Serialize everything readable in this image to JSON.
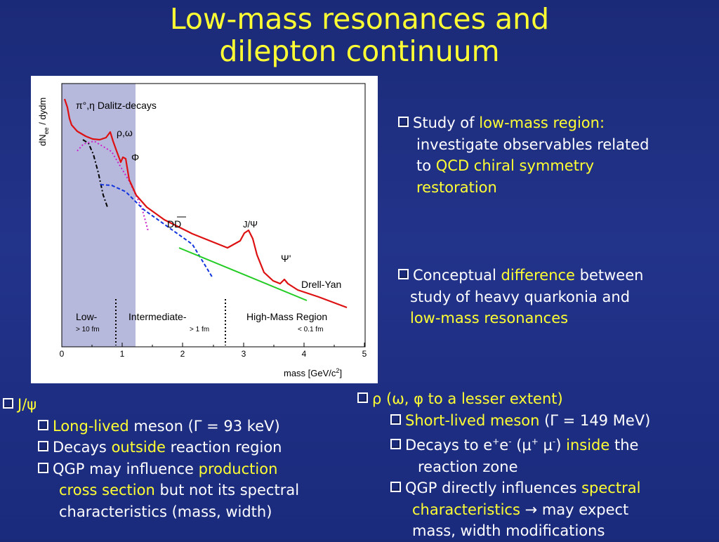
{
  "title": {
    "line1": "Low-mass resonances and",
    "line2": "dilepton continuum"
  },
  "figure": {
    "ylabel_main": "dN",
    "ylabel_sub": "ee",
    "ylabel_rest": " / dydm",
    "xlabel": "mass [GeV/c",
    "xlabel_sup": "2",
    "xlabel_end": "]",
    "xticks": [
      "0",
      "1",
      "2",
      "3",
      "4",
      "5"
    ],
    "labels": {
      "dalitz": "π°,η Dalitz-decays",
      "rho_omega": "ρ,ω",
      "phi": "Φ",
      "dd": "DD",
      "jpsi": "J/Ψ",
      "psiprime": "Ψ'",
      "drell_yan": "Drell-Yan",
      "low": "Low-",
      "low_sub": "> 10 fm",
      "intermediate": "Intermediate-",
      "intermediate_sub": "> 1 fm",
      "high": "High-Mass Region",
      "high_sub": "< 0.1 fm"
    }
  },
  "right_top": {
    "b1": {
      "pre": "Study of ",
      "hl1": "low-mass region:",
      "l2": "investigate observables related",
      "l3_pre": "to ",
      "hl2": "QCD chiral symmetry",
      "hl3": "restoration"
    },
    "b2": {
      "pre": "Conceptual ",
      "hl1": "difference",
      "post": " between",
      "l2": "study of heavy quarkonia and",
      "hl2": "low-mass resonances"
    }
  },
  "left_bottom": {
    "head": "J/ψ",
    "i1_hl": "Long-lived",
    "i1_rest": " meson (Γ = 93 keV)",
    "i2_pre": "Decays ",
    "i2_hl": "outside",
    "i2_rest": " reaction region",
    "i3_pre": "QGP may influence ",
    "i3_hl": "production",
    "i3_l2_hl": "cross section",
    "i3_l2_rest": " but not its spectral",
    "i3_l3": "characteristics (mass, width)"
  },
  "right_bottom": {
    "head_sym": "ρ",
    "head_hl": " (ω, φ to a lesser extent)",
    "i1_hl": "Short-lived meson",
    "i1_rest": " (Γ = 149 MeV)",
    "i2_pre": "Decays to e",
    "i2_sup1": "+",
    "i2_mid": "e",
    "i2_sup2": "-",
    "i2_mu": " (μ",
    "i2_sup3": "+",
    "i2_mu2": " μ",
    "i2_sup4": "-",
    "i2_close": ") ",
    "i2_hl": "inside",
    "i2_rest": " the",
    "i2_l2": "reaction zone",
    "i3_pre": "QGP directly influences ",
    "i3_hl": "spectral",
    "i3_l2_hl": "characteristics",
    "i3_l2_rest": " → may expect",
    "i3_l3": "mass, width modifications"
  },
  "colors": {
    "title": "#ffff33",
    "highlight": "#ffff33",
    "background": "#1b2a78",
    "shaded_region": "#b6b8dc",
    "spectrum": "#dd1111",
    "drell_yan_line": "#22cc22",
    "dd_dashed": "#1133dd",
    "dalitz_dashdot": "#000000",
    "rho_dotted": "#cc22cc"
  }
}
